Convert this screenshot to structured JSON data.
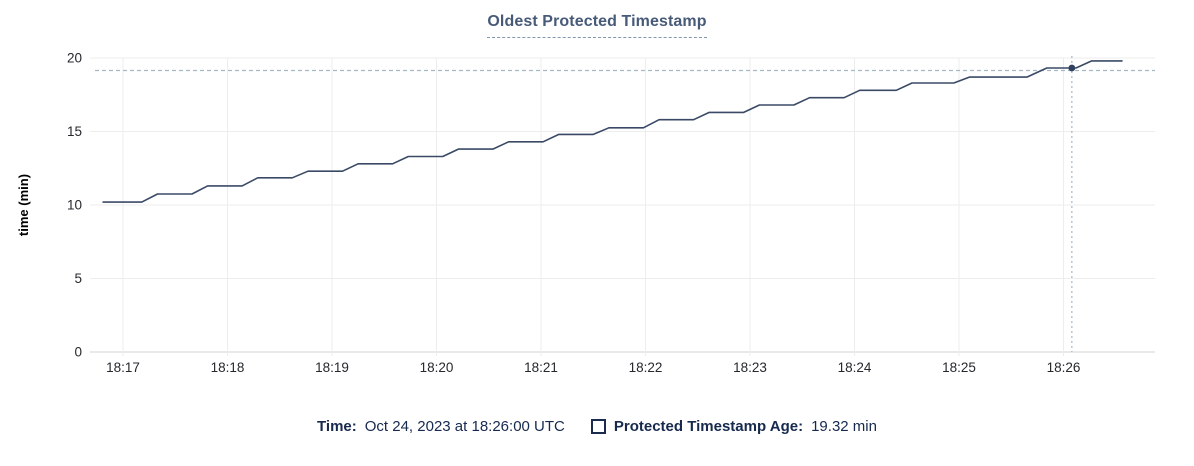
{
  "chart": {
    "title": "Oldest Protected Timestamp"
  },
  "chart_data": {
    "type": "line",
    "title": "Oldest Protected Timestamp",
    "xlabel": "",
    "ylabel": "time (min)",
    "ylim": [
      0,
      20
    ],
    "yticks": [
      0,
      5,
      10,
      15,
      20
    ],
    "xtick_labels": [
      "18:17",
      "18:18",
      "18:19",
      "18:20",
      "18:21",
      "18:22",
      "18:23",
      "18:24",
      "18:25",
      "18:26"
    ],
    "x_unit": "minutes after 18:17 UTC",
    "grid": true,
    "legend_position": "bottom",
    "series": [
      {
        "name": "Protected Timestamp Age",
        "unit": "min",
        "style": "stepped-line",
        "points": [
          [
            -0.19,
            10.2
          ],
          [
            0.18,
            10.2
          ],
          [
            0.33,
            10.75
          ],
          [
            0.66,
            10.75
          ],
          [
            0.81,
            11.3
          ],
          [
            1.14,
            11.3
          ],
          [
            1.29,
            11.85
          ],
          [
            1.62,
            11.85
          ],
          [
            1.77,
            12.3
          ],
          [
            2.1,
            12.3
          ],
          [
            2.25,
            12.8
          ],
          [
            2.58,
            12.8
          ],
          [
            2.73,
            13.3
          ],
          [
            3.06,
            13.3
          ],
          [
            3.21,
            13.8
          ],
          [
            3.54,
            13.8
          ],
          [
            3.69,
            14.3
          ],
          [
            4.02,
            14.3
          ],
          [
            4.17,
            14.8
          ],
          [
            4.5,
            14.8
          ],
          [
            4.65,
            15.25
          ],
          [
            4.98,
            15.25
          ],
          [
            5.13,
            15.8
          ],
          [
            5.46,
            15.8
          ],
          [
            5.61,
            16.3
          ],
          [
            5.94,
            16.3
          ],
          [
            6.09,
            16.8
          ],
          [
            6.42,
            16.8
          ],
          [
            6.57,
            17.3
          ],
          [
            6.9,
            17.3
          ],
          [
            7.05,
            17.8
          ],
          [
            7.4,
            17.8
          ],
          [
            7.55,
            18.3
          ],
          [
            7.95,
            18.3
          ],
          [
            8.1,
            18.7
          ],
          [
            8.65,
            18.7
          ],
          [
            8.84,
            19.32
          ],
          [
            9.12,
            19.32
          ],
          [
            9.27,
            19.8
          ],
          [
            9.56,
            19.8
          ]
        ]
      }
    ],
    "hover_point": {
      "x": 9.08,
      "value": 19.32,
      "x_label": "18:26:00"
    }
  },
  "footer": {
    "time_label": "Time:",
    "time_value": "Oct 24, 2023 at 18:26:00 UTC",
    "series_label": "Protected Timestamp Age:",
    "series_value": "19.32 min"
  },
  "colors": {
    "line": "#3a4a66",
    "dot": "#2f415f",
    "title": "#475a77",
    "footer_text": "#16294e",
    "tick_text": "#25282c",
    "axis_label": "#000000",
    "grid": "#ededed",
    "axis_line": "#dcdcdc",
    "crosshair": "#a4b9c4"
  }
}
